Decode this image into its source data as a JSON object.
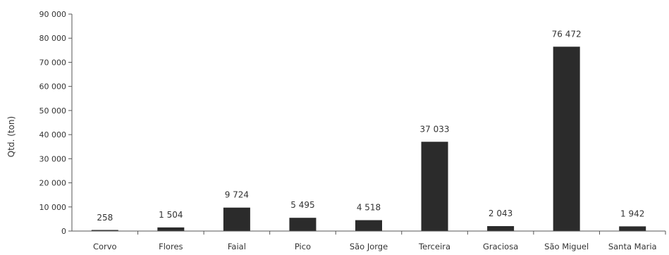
{
  "chart_data": {
    "type": "bar",
    "title": "",
    "xlabel": "",
    "ylabel": "Qtd. (ton)",
    "ylim": [
      0,
      90000
    ],
    "yticks": [
      0,
      10000,
      20000,
      30000,
      40000,
      50000,
      60000,
      70000,
      80000,
      90000
    ],
    "ytick_labels": [
      "0",
      "10 000",
      "20 000",
      "30 000",
      "40 000",
      "50 000",
      "60 000",
      "70 000",
      "80 000",
      "90 000"
    ],
    "categories": [
      "Corvo",
      "Flores",
      "Faial",
      "Pico",
      "São Jorge",
      "Terceira",
      "Graciosa",
      "São Miguel",
      "Santa Maria"
    ],
    "values": [
      258,
      1504,
      9724,
      5495,
      4518,
      37033,
      2043,
      76472,
      1942
    ],
    "value_labels": [
      "258",
      "1 504",
      "9 724",
      "5 495",
      "4 518",
      "37 033",
      "2 043",
      "76 472",
      "1 942"
    ],
    "grid": false,
    "legend": "none",
    "bar_color": "#2b2b2b",
    "axis_color": "#555555"
  }
}
